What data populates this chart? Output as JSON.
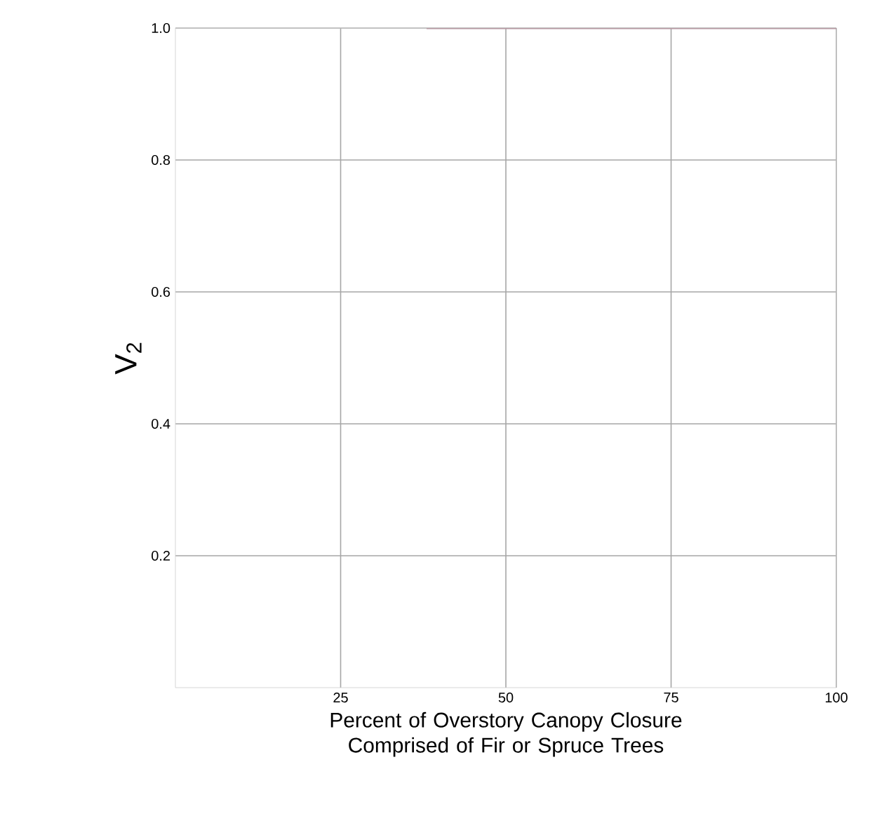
{
  "chart_data": {
    "type": "line",
    "xlabel": "Percent of Overstory Canopy Closure Comprised of Fir or Spruce Trees",
    "ylabel": "V$_{2}$",
    "x": [
      38,
      100
    ],
    "series": [
      {
        "color": "#b89aa3",
        "values": [
          1.0,
          1.0
        ]
      }
    ],
    "xlim": [
      0,
      100
    ],
    "xticks": [
      25,
      50,
      75,
      100
    ],
    "ylim": [
      0,
      1.0
    ],
    "yticks": [
      0.2,
      0.4,
      0.6,
      0.8,
      {
        "value": 1.0,
        "label": "1.0"
      }
    ],
    "grid": true,
    "marker": "none",
    "line_style": "solid"
  }
}
